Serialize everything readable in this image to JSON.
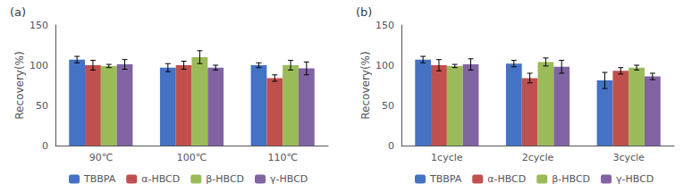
{
  "chart_data": [
    {
      "type": "bar",
      "title": "(a)",
      "categories": [
        "90℃",
        "100℃",
        "110℃"
      ],
      "series": [
        {
          "name": "TBBPA",
          "color": "#4472C4",
          "values": [
            107,
            97,
            100
          ],
          "errors": [
            4,
            5,
            3
          ]
        },
        {
          "name": "α-HBCD",
          "color": "#C0504D",
          "values": [
            100,
            100,
            84
          ],
          "errors": [
            6,
            5,
            4
          ]
        },
        {
          "name": "β-HBCD",
          "color": "#9BBB59",
          "values": [
            99,
            110,
            100
          ],
          "errors": [
            2,
            8,
            6
          ]
        },
        {
          "name": "γ-HBCD",
          "color": "#8064A2",
          "values": [
            101,
            97,
            96
          ],
          "errors": [
            6,
            3,
            8
          ]
        }
      ],
      "ylim": [
        0,
        150
      ],
      "yticks": [
        0,
        50,
        100,
        150
      ],
      "ylabel": "Recovery(%)",
      "legend": "bottom",
      "grid": false
    },
    {
      "type": "bar",
      "title": "(b)",
      "categories": [
        "1cycle",
        "2cycle",
        "3cycle"
      ],
      "series": [
        {
          "name": "TBBPA",
          "color": "#4472C4",
          "values": [
            107,
            102,
            81
          ],
          "errors": [
            4,
            4,
            10
          ]
        },
        {
          "name": "α-HBCD",
          "color": "#C0504D",
          "values": [
            100,
            84,
            93
          ],
          "errors": [
            7,
            6,
            4
          ]
        },
        {
          "name": "β-HBCD",
          "color": "#9BBB59",
          "values": [
            99,
            104,
            97
          ],
          "errors": [
            2,
            5,
            3
          ]
        },
        {
          "name": "γ-HBCD",
          "color": "#8064A2",
          "values": [
            101,
            98,
            86
          ],
          "errors": [
            7,
            8,
            4
          ]
        }
      ],
      "ylim": [
        0,
        150
      ],
      "yticks": [
        0,
        50,
        100,
        150
      ],
      "ylabel": "Recovery(%)",
      "legend": "bottom",
      "grid": false
    }
  ]
}
